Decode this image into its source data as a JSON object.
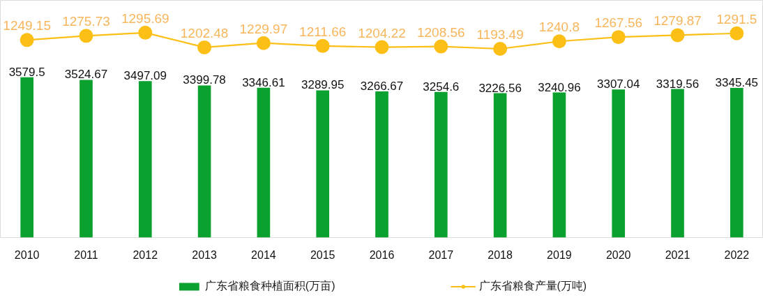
{
  "chart_data": {
    "type": "bar",
    "categories": [
      "2010",
      "2011",
      "2012",
      "2013",
      "2014",
      "2015",
      "2016",
      "2017",
      "2018",
      "2019",
      "2020",
      "2021",
      "2022"
    ],
    "series": [
      {
        "name": "广东省粮食种植面积(万亩)",
        "color": "#0aa12e",
        "values": [
          3579.5,
          3524.67,
          3497.09,
          3399.78,
          3346.61,
          3289.95,
          3266.67,
          3254.6,
          3226.56,
          3240.96,
          3307.04,
          3319.56,
          3345.45
        ]
      },
      {
        "name": "广东省粮食产量(万吨)",
        "type": "line",
        "axis": "y2",
        "color": "#fcbf16",
        "values": [
          1249.15,
          1275.73,
          1295.69,
          1202.48,
          1229.97,
          1211.66,
          1204.22,
          1208.56,
          1193.49,
          1240.8,
          1267.56,
          1279.87,
          1291.5
        ]
      }
    ],
    "ylim": [
      0,
      5300
    ],
    "y2lim": [
      0,
      1500
    ],
    "data_labels": true,
    "legend": "bottom",
    "tick_labels": "x",
    "marker": "circle",
    "line_style": "solid"
  }
}
